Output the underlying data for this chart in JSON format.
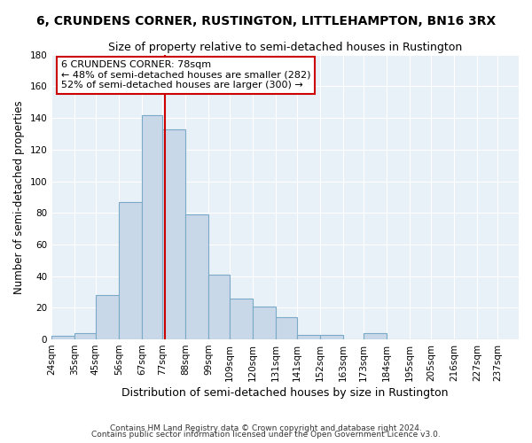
{
  "title": "6, CRUNDENS CORNER, RUSTINGTON, LITTLEHAMPTON, BN16 3RX",
  "subtitle": "Size of property relative to semi-detached houses in Rustington",
  "xlabel": "Distribution of semi-detached houses by size in Rustington",
  "ylabel": "Number of semi-detached properties",
  "bin_labels": [
    "24sqm",
    "35sqm",
    "45sqm",
    "56sqm",
    "67sqm",
    "77sqm",
    "88sqm",
    "99sqm",
    "109sqm",
    "120sqm",
    "131sqm",
    "141sqm",
    "152sqm",
    "163sqm",
    "173sqm",
    "184sqm",
    "195sqm",
    "205sqm",
    "216sqm",
    "227sqm",
    "237sqm"
  ],
  "bin_edges": [
    24,
    35,
    45,
    56,
    67,
    77,
    88,
    99,
    109,
    120,
    131,
    141,
    152,
    163,
    173,
    184,
    195,
    205,
    216,
    227,
    237
  ],
  "bar_heights": [
    2,
    4,
    28,
    87,
    142,
    133,
    79,
    41,
    26,
    21,
    14,
    3,
    3,
    0,
    4,
    0,
    0,
    0,
    0,
    0
  ],
  "bar_color": "#c8d8e8",
  "bar_edge_color": "#7aaac8",
  "property_value": 78,
  "vline_color": "#cc0000",
  "annotation_line1": "6 CRUNDENS CORNER: 78sqm",
  "annotation_line2": "← 48% of semi-detached houses are smaller (282)",
  "annotation_line3": "52% of semi-detached houses are larger (300) →",
  "annotation_box_edge": "#cc0000",
  "ylim": [
    0,
    180
  ],
  "yticks": [
    0,
    20,
    40,
    60,
    80,
    100,
    120,
    140,
    160,
    180
  ],
  "bg_color": "#e8f0f8",
  "footer_line1": "Contains HM Land Registry data © Crown copyright and database right 2024.",
  "footer_line2": "Contains public sector information licensed under the Open Government Licence v3.0.",
  "title_fontsize": 10,
  "subtitle_fontsize": 9,
  "xlabel_fontsize": 9,
  "ylabel_fontsize": 8.5,
  "tick_fontsize": 7.5,
  "annotation_fontsize": 8
}
